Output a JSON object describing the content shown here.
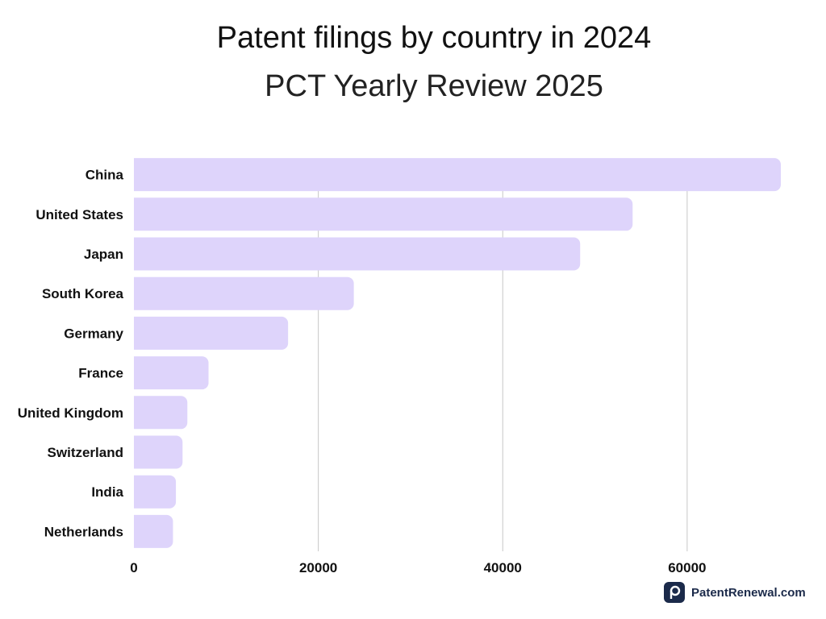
{
  "header": {
    "title": "Patent filings by country in 2024",
    "subtitle": "PCT Yearly Review 2025"
  },
  "brand": {
    "name": "PatentRenewal.com",
    "icon": "patentrenewal-logo-icon"
  },
  "colors": {
    "bar": "#ded4fb",
    "grid": "#c8c8c8",
    "text": "#111111",
    "brand": "#1b2a4a"
  },
  "chart_data": {
    "type": "bar",
    "orientation": "horizontal",
    "title": "Patent filings by country in 2024",
    "subtitle": "PCT Yearly Review 2025",
    "xlabel": "",
    "ylabel": "",
    "categories": [
      "China",
      "United States",
      "Japan",
      "South Korea",
      "Germany",
      "France",
      "United Kingdom",
      "Switzerland",
      "India",
      "Netherlands"
    ],
    "values": [
      70160,
      54087,
      48397,
      23851,
      16721,
      8094,
      5798,
      5276,
      4556,
      4237
    ],
    "xlim": [
      0,
      70160
    ],
    "xticks": [
      0,
      20000,
      40000,
      60000
    ],
    "grid": "vertical",
    "legend": "none"
  }
}
